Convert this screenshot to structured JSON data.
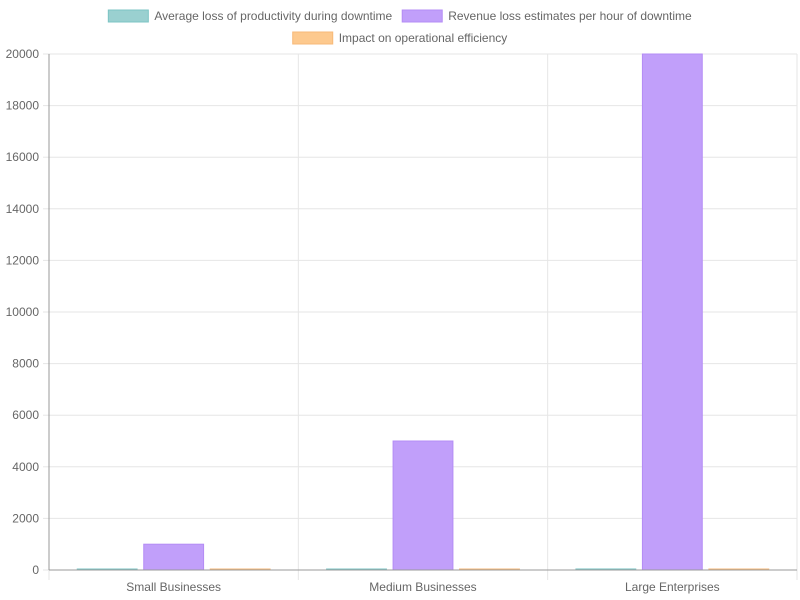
{
  "chart_data": {
    "type": "bar",
    "categories": [
      "Small Businesses",
      "Medium Businesses",
      "Large Enterprises"
    ],
    "series": [
      {
        "name": "Average loss of productivity during downtime",
        "values": [
          20,
          30,
          40
        ],
        "color": "#9ad0d0",
        "border": "#7cc4c4"
      },
      {
        "name": "Revenue loss estimates per hour of downtime",
        "values": [
          1000,
          5000,
          20000
        ],
        "color": "#c19ffa",
        "border": "#b48cf5"
      },
      {
        "name": "Impact on operational efficiency",
        "values": [
          15,
          25,
          35
        ],
        "color": "#fdc98e",
        "border": "#f7b978"
      }
    ],
    "yticks": [
      0,
      2000,
      4000,
      6000,
      8000,
      10000,
      12000,
      14000,
      16000,
      18000,
      20000
    ],
    "ylim": [
      0,
      20000
    ],
    "grid": true,
    "legend": "top",
    "title": "",
    "xlabel": "",
    "ylabel": ""
  }
}
